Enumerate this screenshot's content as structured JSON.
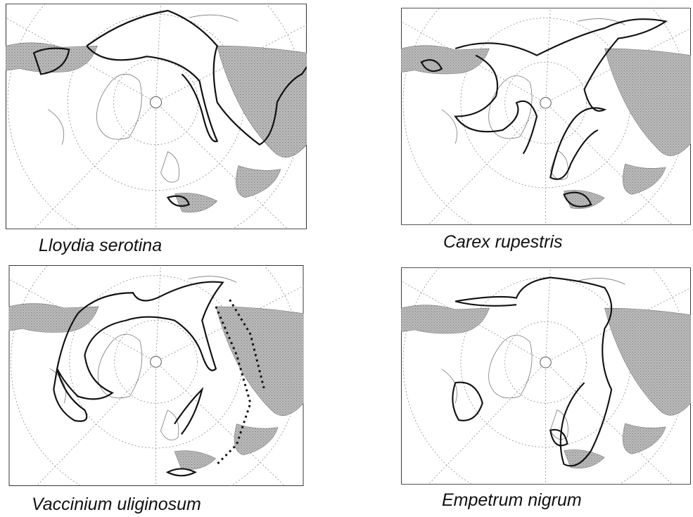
{
  "panels": [
    {
      "caption": "Lloydia serotina"
    },
    {
      "caption": "Carex rupestris"
    },
    {
      "caption": "Vaccinium uliginosum"
    },
    {
      "caption": "Empetrum nigrum"
    }
  ]
}
